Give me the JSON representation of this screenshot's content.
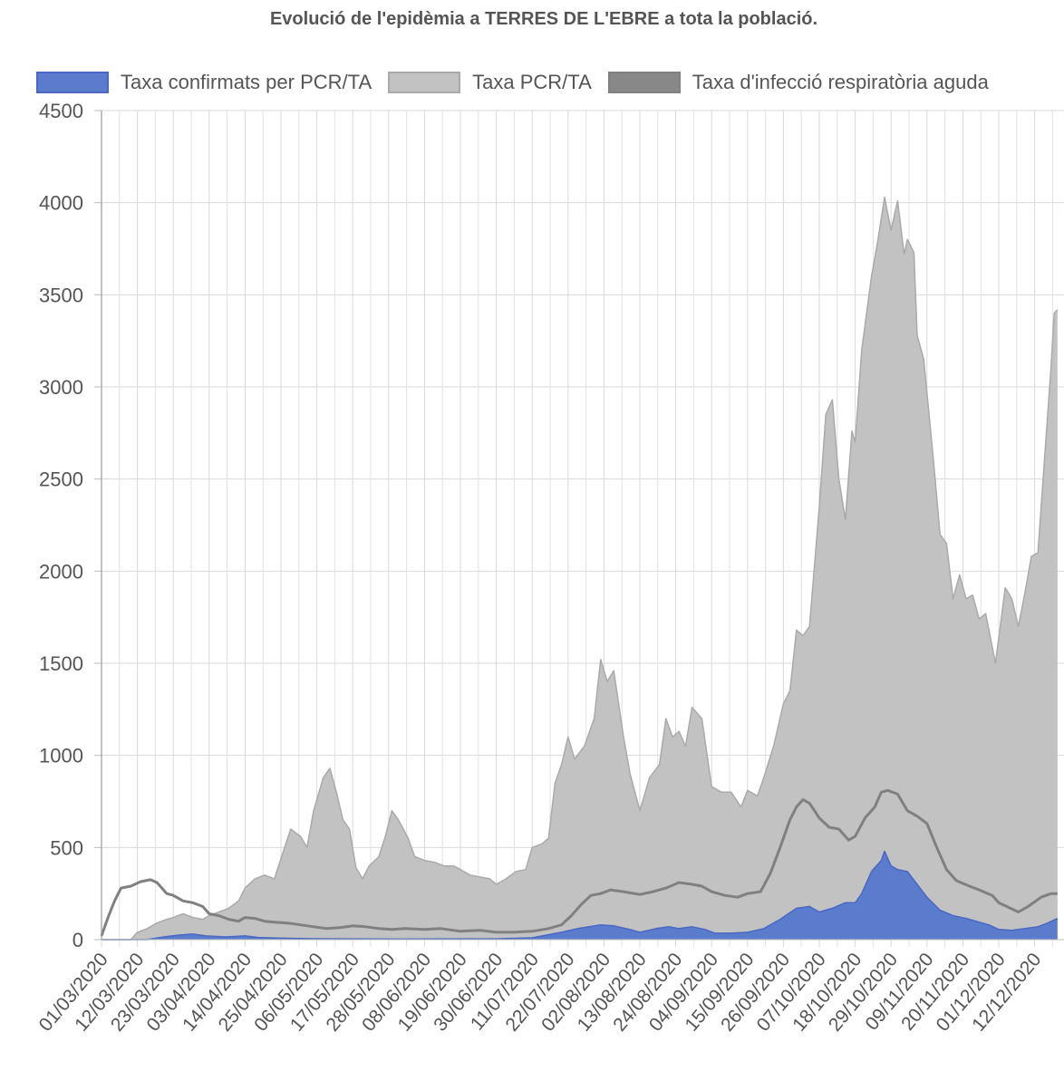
{
  "chart_data": {
    "type": "area",
    "title": "Evolució de l'epidèmia a TERRES DE L'EBRE a tota la població.",
    "xlabel": "",
    "ylabel": "",
    "ylim": [
      0,
      4500
    ],
    "yticks": [
      0,
      500,
      1000,
      1500,
      2000,
      2500,
      3000,
      3500,
      4000,
      4500
    ],
    "grid": true,
    "legend_position": "top",
    "x_start": "01/03/2020",
    "x_tick_labels": [
      "01/03/2020",
      "12/03/2020",
      "23/03/2020",
      "03/04/2020",
      "14/04/2020",
      "25/04/2020",
      "06/05/2020",
      "17/05/2020",
      "28/05/2020",
      "08/06/2020",
      "19/06/2020",
      "30/06/2020",
      "11/07/2020",
      "22/07/2020",
      "02/08/2020",
      "13/08/2020",
      "24/08/2020",
      "04/09/2020",
      "15/09/2020",
      "26/09/2020",
      "07/10/2020",
      "18/10/2020",
      "29/10/2020",
      "09/11/2020",
      "20/11/2020",
      "01/12/2020",
      "12/12/2020"
    ],
    "series": [
      {
        "name": "Taxa PCR/TA",
        "kind": "area",
        "color": "#c2c2c2",
        "stroke": "#aaaaaa",
        "points": [
          [
            "01/03/2020",
            0
          ],
          [
            "10/03/2020",
            0
          ],
          [
            "12/03/2020",
            40
          ],
          [
            "15/03/2020",
            60
          ],
          [
            "18/03/2020",
            90
          ],
          [
            "21/03/2020",
            110
          ],
          [
            "23/03/2020",
            120
          ],
          [
            "26/03/2020",
            140
          ],
          [
            "29/03/2020",
            120
          ],
          [
            "01/04/2020",
            110
          ],
          [
            "03/04/2020",
            130
          ],
          [
            "06/04/2020",
            150
          ],
          [
            "09/04/2020",
            170
          ],
          [
            "12/04/2020",
            210
          ],
          [
            "14/04/2020",
            280
          ],
          [
            "17/04/2020",
            330
          ],
          [
            "20/04/2020",
            350
          ],
          [
            "23/04/2020",
            330
          ],
          [
            "25/04/2020",
            440
          ],
          [
            "28/04/2020",
            600
          ],
          [
            "01/05/2020",
            560
          ],
          [
            "03/05/2020",
            500
          ],
          [
            "05/05/2020",
            700
          ],
          [
            "08/05/2020",
            880
          ],
          [
            "10/05/2020",
            930
          ],
          [
            "12/05/2020",
            800
          ],
          [
            "14/05/2020",
            650
          ],
          [
            "16/05/2020",
            600
          ],
          [
            "18/05/2020",
            390
          ],
          [
            "20/05/2020",
            330
          ],
          [
            "22/05/2020",
            400
          ],
          [
            "25/05/2020",
            450
          ],
          [
            "27/05/2020",
            560
          ],
          [
            "29/05/2020",
            700
          ],
          [
            "31/05/2020",
            650
          ],
          [
            "03/06/2020",
            550
          ],
          [
            "05/06/2020",
            450
          ],
          [
            "08/06/2020",
            430
          ],
          [
            "11/06/2020",
            420
          ],
          [
            "14/06/2020",
            400
          ],
          [
            "17/06/2020",
            400
          ],
          [
            "19/06/2020",
            380
          ],
          [
            "22/06/2020",
            350
          ],
          [
            "25/06/2020",
            340
          ],
          [
            "28/06/2020",
            330
          ],
          [
            "30/06/2020",
            300
          ],
          [
            "03/07/2020",
            330
          ],
          [
            "06/07/2020",
            370
          ],
          [
            "09/07/2020",
            380
          ],
          [
            "11/07/2020",
            500
          ],
          [
            "14/07/2020",
            520
          ],
          [
            "16/07/2020",
            550
          ],
          [
            "18/07/2020",
            850
          ],
          [
            "20/07/2020",
            950
          ],
          [
            "22/07/2020",
            1100
          ],
          [
            "24/07/2020",
            980
          ],
          [
            "27/07/2020",
            1050
          ],
          [
            "30/07/2020",
            1200
          ],
          [
            "01/08/2020",
            1520
          ],
          [
            "03/08/2020",
            1400
          ],
          [
            "05/08/2020",
            1460
          ],
          [
            "08/08/2020",
            1100
          ],
          [
            "10/08/2020",
            900
          ],
          [
            "13/08/2020",
            700
          ],
          [
            "16/08/2020",
            880
          ],
          [
            "19/08/2020",
            950
          ],
          [
            "21/08/2020",
            1200
          ],
          [
            "23/08/2020",
            1100
          ],
          [
            "25/08/2020",
            1130
          ],
          [
            "27/08/2020",
            1050
          ],
          [
            "29/08/2020",
            1260
          ],
          [
            "01/09/2020",
            1200
          ],
          [
            "04/09/2020",
            830
          ],
          [
            "07/09/2020",
            800
          ],
          [
            "10/09/2020",
            800
          ],
          [
            "13/09/2020",
            720
          ],
          [
            "15/09/2020",
            810
          ],
          [
            "18/09/2020",
            780
          ],
          [
            "20/09/2020",
            880
          ],
          [
            "23/09/2020",
            1050
          ],
          [
            "26/09/2020",
            1280
          ],
          [
            "28/09/2020",
            1350
          ],
          [
            "30/09/2020",
            1680
          ],
          [
            "02/10/2020",
            1650
          ],
          [
            "04/10/2020",
            1700
          ],
          [
            "07/10/2020",
            2350
          ],
          [
            "09/10/2020",
            2850
          ],
          [
            "11/10/2020",
            2930
          ],
          [
            "13/10/2020",
            2500
          ],
          [
            "15/10/2020",
            2280
          ],
          [
            "17/10/2020",
            2760
          ],
          [
            "18/10/2020",
            2700
          ],
          [
            "20/10/2020",
            3200
          ],
          [
            "23/10/2020",
            3600
          ],
          [
            "25/10/2020",
            3800
          ],
          [
            "27/10/2020",
            4030
          ],
          [
            "29/10/2020",
            3850
          ],
          [
            "31/10/2020",
            4010
          ],
          [
            "02/11/2020",
            3720
          ],
          [
            "03/11/2020",
            3800
          ],
          [
            "05/11/2020",
            3730
          ],
          [
            "06/11/2020",
            3280
          ],
          [
            "08/11/2020",
            3150
          ],
          [
            "11/11/2020",
            2600
          ],
          [
            "13/11/2020",
            2200
          ],
          [
            "15/11/2020",
            2150
          ],
          [
            "17/11/2020",
            1850
          ],
          [
            "19/11/2020",
            1980
          ],
          [
            "21/11/2020",
            1850
          ],
          [
            "23/11/2020",
            1870
          ],
          [
            "25/11/2020",
            1740
          ],
          [
            "27/11/2020",
            1770
          ],
          [
            "30/11/2020",
            1500
          ],
          [
            "03/12/2020",
            1910
          ],
          [
            "05/12/2020",
            1850
          ],
          [
            "07/12/2020",
            1700
          ],
          [
            "09/12/2020",
            1880
          ],
          [
            "11/12/2020",
            2080
          ],
          [
            "13/12/2020",
            2100
          ],
          [
            "15/12/2020",
            2600
          ],
          [
            "17/12/2020",
            3100
          ],
          [
            "18/12/2020",
            3400
          ],
          [
            "19/12/2020",
            3420
          ]
        ]
      },
      {
        "name": "Taxa confirmats per PCR/TA",
        "kind": "area",
        "color": "#5b7ccc",
        "stroke": "#4a68c2",
        "points": [
          [
            "01/03/2020",
            0
          ],
          [
            "15/03/2020",
            0
          ],
          [
            "20/03/2020",
            15
          ],
          [
            "25/03/2020",
            25
          ],
          [
            "29/03/2020",
            30
          ],
          [
            "02/04/2020",
            20
          ],
          [
            "08/04/2020",
            15
          ],
          [
            "14/04/2020",
            20
          ],
          [
            "18/04/2020",
            12
          ],
          [
            "25/04/2020",
            8
          ],
          [
            "05/05/2020",
            5
          ],
          [
            "01/06/2020",
            3
          ],
          [
            "01/07/2020",
            5
          ],
          [
            "11/07/2020",
            10
          ],
          [
            "20/07/2020",
            40
          ],
          [
            "25/07/2020",
            60
          ],
          [
            "01/08/2020",
            80
          ],
          [
            "05/08/2020",
            75
          ],
          [
            "10/08/2020",
            55
          ],
          [
            "13/08/2020",
            40
          ],
          [
            "18/08/2020",
            60
          ],
          [
            "22/08/2020",
            70
          ],
          [
            "25/08/2020",
            60
          ],
          [
            "29/08/2020",
            70
          ],
          [
            "02/09/2020",
            55
          ],
          [
            "05/09/2020",
            35
          ],
          [
            "10/09/2020",
            35
          ],
          [
            "15/09/2020",
            40
          ],
          [
            "20/09/2020",
            60
          ],
          [
            "25/09/2020",
            110
          ],
          [
            "30/09/2020",
            170
          ],
          [
            "04/10/2020",
            180
          ],
          [
            "07/10/2020",
            150
          ],
          [
            "11/10/2020",
            170
          ],
          [
            "15/10/2020",
            200
          ],
          [
            "18/10/2020",
            200
          ],
          [
            "20/10/2020",
            250
          ],
          [
            "23/10/2020",
            370
          ],
          [
            "26/10/2020",
            430
          ],
          [
            "27/10/2020",
            480
          ],
          [
            "29/10/2020",
            400
          ],
          [
            "31/10/2020",
            380
          ],
          [
            "03/11/2020",
            370
          ],
          [
            "06/11/2020",
            300
          ],
          [
            "09/11/2020",
            230
          ],
          [
            "13/11/2020",
            160
          ],
          [
            "17/11/2020",
            130
          ],
          [
            "21/11/2020",
            115
          ],
          [
            "25/11/2020",
            95
          ],
          [
            "28/11/2020",
            80
          ],
          [
            "01/12/2020",
            55
          ],
          [
            "05/12/2020",
            50
          ],
          [
            "09/12/2020",
            60
          ],
          [
            "13/12/2020",
            70
          ],
          [
            "16/12/2020",
            90
          ],
          [
            "19/12/2020",
            115
          ]
        ]
      },
      {
        "name": "Taxa d'infecció respiratòria aguda",
        "kind": "line",
        "color": "#888888",
        "stroke": "#808080",
        "points": [
          [
            "01/03/2020",
            20
          ],
          [
            "03/03/2020",
            120
          ],
          [
            "05/03/2020",
            210
          ],
          [
            "07/03/2020",
            280
          ],
          [
            "10/03/2020",
            290
          ],
          [
            "13/03/2020",
            315
          ],
          [
            "16/03/2020",
            325
          ],
          [
            "18/03/2020",
            310
          ],
          [
            "21/03/2020",
            250
          ],
          [
            "23/03/2020",
            240
          ],
          [
            "26/03/2020",
            210
          ],
          [
            "29/03/2020",
            200
          ],
          [
            "01/04/2020",
            180
          ],
          [
            "03/04/2020",
            140
          ],
          [
            "06/04/2020",
            130
          ],
          [
            "09/04/2020",
            110
          ],
          [
            "12/04/2020",
            100
          ],
          [
            "14/04/2020",
            120
          ],
          [
            "17/04/2020",
            115
          ],
          [
            "20/04/2020",
            100
          ],
          [
            "23/04/2020",
            95
          ],
          [
            "27/04/2020",
            90
          ],
          [
            "01/05/2020",
            80
          ],
          [
            "05/05/2020",
            70
          ],
          [
            "09/05/2020",
            60
          ],
          [
            "13/05/2020",
            65
          ],
          [
            "17/05/2020",
            75
          ],
          [
            "21/05/2020",
            70
          ],
          [
            "25/05/2020",
            60
          ],
          [
            "29/05/2020",
            55
          ],
          [
            "02/06/2020",
            60
          ],
          [
            "08/06/2020",
            55
          ],
          [
            "13/06/2020",
            60
          ],
          [
            "19/06/2020",
            45
          ],
          [
            "25/06/2020",
            50
          ],
          [
            "30/06/2020",
            40
          ],
          [
            "05/07/2020",
            40
          ],
          [
            "11/07/2020",
            45
          ],
          [
            "16/07/2020",
            60
          ],
          [
            "20/07/2020",
            80
          ],
          [
            "23/07/2020",
            130
          ],
          [
            "26/07/2020",
            190
          ],
          [
            "29/07/2020",
            240
          ],
          [
            "01/08/2020",
            250
          ],
          [
            "04/08/2020",
            270
          ],
          [
            "08/08/2020",
            260
          ],
          [
            "13/08/2020",
            245
          ],
          [
            "17/08/2020",
            260
          ],
          [
            "21/08/2020",
            280
          ],
          [
            "25/08/2020",
            310
          ],
          [
            "29/08/2020",
            300
          ],
          [
            "01/09/2020",
            290
          ],
          [
            "04/09/2020",
            260
          ],
          [
            "08/09/2020",
            240
          ],
          [
            "12/09/2020",
            230
          ],
          [
            "15/09/2020",
            250
          ],
          [
            "19/09/2020",
            260
          ],
          [
            "22/09/2020",
            360
          ],
          [
            "25/09/2020",
            500
          ],
          [
            "28/09/2020",
            650
          ],
          [
            "30/09/2020",
            720
          ],
          [
            "02/10/2020",
            760
          ],
          [
            "04/10/2020",
            740
          ],
          [
            "07/10/2020",
            660
          ],
          [
            "10/10/2020",
            610
          ],
          [
            "13/10/2020",
            600
          ],
          [
            "16/10/2020",
            540
          ],
          [
            "18/10/2020",
            560
          ],
          [
            "21/10/2020",
            660
          ],
          [
            "24/10/2020",
            720
          ],
          [
            "26/10/2020",
            800
          ],
          [
            "28/10/2020",
            810
          ],
          [
            "31/10/2020",
            790
          ],
          [
            "03/11/2020",
            700
          ],
          [
            "06/11/2020",
            670
          ],
          [
            "09/11/2020",
            630
          ],
          [
            "12/11/2020",
            500
          ],
          [
            "15/11/2020",
            380
          ],
          [
            "18/11/2020",
            320
          ],
          [
            "22/11/2020",
            290
          ],
          [
            "25/11/2020",
            270
          ],
          [
            "29/11/2020",
            240
          ],
          [
            "01/12/2020",
            200
          ],
          [
            "04/12/2020",
            175
          ],
          [
            "07/12/2020",
            150
          ],
          [
            "10/12/2020",
            180
          ],
          [
            "14/12/2020",
            230
          ],
          [
            "17/12/2020",
            250
          ],
          [
            "19/12/2020",
            250
          ]
        ]
      }
    ]
  }
}
